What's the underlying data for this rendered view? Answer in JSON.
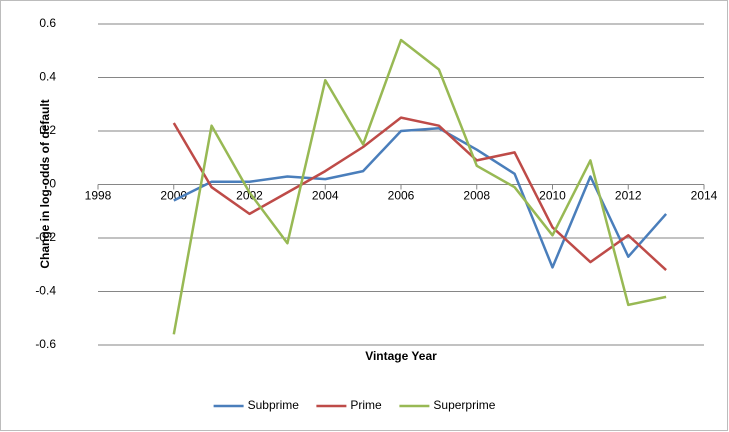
{
  "chart_data": {
    "type": "line",
    "y_label": "Change in log-odds of default",
    "x_label": "Vintage Year",
    "x": [
      2000,
      2001,
      2002,
      2003,
      2004,
      2005,
      2006,
      2007,
      2008,
      2009,
      2010,
      2011,
      2012,
      2013
    ],
    "series": [
      {
        "name": "Subprime",
        "color": "#4a7ebb",
        "values": [
          -0.06,
          0.01,
          0.01,
          0.03,
          0.02,
          0.05,
          0.2,
          0.21,
          0.13,
          0.04,
          -0.31,
          0.03,
          -0.27,
          -0.11
        ]
      },
      {
        "name": "Prime",
        "color": "#be4b48",
        "values": [
          0.23,
          -0.01,
          -0.11,
          -0.03,
          0.05,
          0.14,
          0.25,
          0.22,
          0.09,
          0.12,
          -0.16,
          -0.29,
          -0.19,
          -0.32
        ]
      },
      {
        "name": "Superprime",
        "color": "#98b954",
        "values": [
          -0.56,
          0.22,
          -0.03,
          -0.22,
          0.39,
          0.15,
          0.54,
          0.43,
          0.07,
          -0.01,
          -0.19,
          0.09,
          -0.45,
          -0.42
        ]
      }
    ],
    "xlim": [
      1998,
      2014
    ],
    "xticks": [
      1998,
      2000,
      2002,
      2004,
      2006,
      2008,
      2010,
      2012,
      2014
    ],
    "ylim": [
      -0.6,
      0.6
    ],
    "yticks": [
      -0.6,
      -0.4,
      -0.2,
      0,
      0.2,
      0.4,
      0.6
    ],
    "grid": true,
    "legend": "bottom"
  }
}
